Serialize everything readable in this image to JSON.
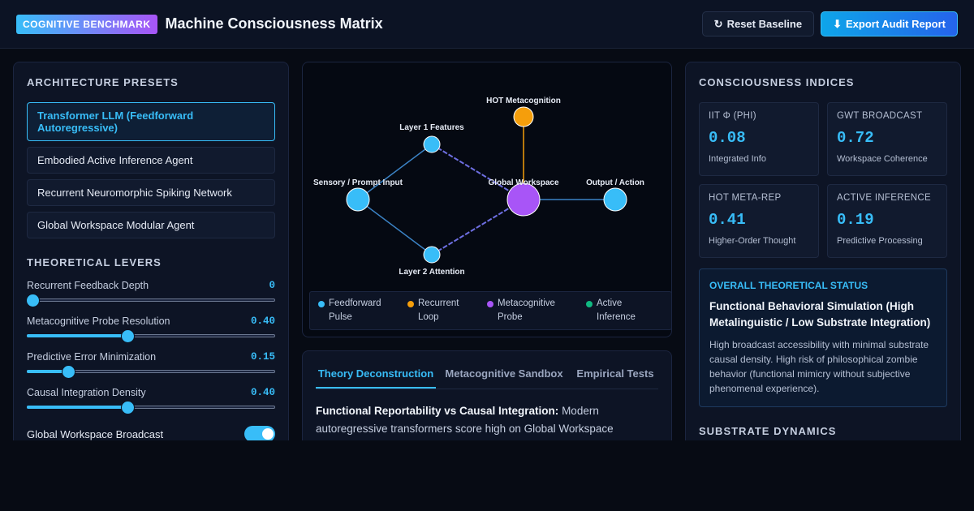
{
  "header": {
    "badge": "COGNITIVE BENCHMARK",
    "title": "Machine Consciousness Matrix",
    "reset_label": "Reset Baseline",
    "reset_icon": "refresh-icon",
    "export_label": "Export Audit Report",
    "export_icon": "download-icon"
  },
  "presets": {
    "title": "ARCHITECTURE PRESETS",
    "items": [
      {
        "label": "Transformer LLM (Feedforward Autoregressive)",
        "active": true
      },
      {
        "label": "Embodied Active Inference Agent",
        "active": false
      },
      {
        "label": "Recurrent Neuromorphic Spiking Network",
        "active": false
      },
      {
        "label": "Global Workspace Modular Agent",
        "active": false
      }
    ]
  },
  "levers": {
    "title": "THEORETICAL LEVERS",
    "items": [
      {
        "label": "Recurrent Feedback Depth",
        "value": "0",
        "level": 0
      },
      {
        "label": "Metacognitive Probe Resolution",
        "value": "0.40",
        "level": 0.4
      },
      {
        "label": "Predictive Error Minimization",
        "value": "0.15",
        "level": 0.15
      },
      {
        "label": "Causal Integration Density",
        "value": "0.40",
        "level": 0.4
      }
    ],
    "toggle_label": "Global Workspace Broadcast",
    "toggle_on": true
  },
  "graph": {
    "nodes": [
      {
        "label": "HOT Metacognition",
        "color": "#f59e0b"
      },
      {
        "label": "Layer 1 Features",
        "color": "#38bdf8"
      },
      {
        "label": "Sensory / Prompt Input",
        "color": "#38bdf8"
      },
      {
        "label": "Global Workspace",
        "color": "#a855f7"
      },
      {
        "label": "Output / Action",
        "color": "#38bdf8"
      },
      {
        "label": "Layer 2 Attention",
        "color": "#38bdf8"
      }
    ],
    "legend": [
      {
        "label": "Feedforward Pulse",
        "color": "#38bdf8"
      },
      {
        "label": "Recurrent Loop",
        "color": "#f59e0b"
      },
      {
        "label": "Metacognitive Probe",
        "color": "#a855f7"
      },
      {
        "label": "Active Inference",
        "color": "#10b981"
      }
    ]
  },
  "tabs": {
    "items": [
      {
        "label": "Theory Deconstruction",
        "active": true
      },
      {
        "label": "Metacognitive Sandbox",
        "active": false
      },
      {
        "label": "Empirical Tests",
        "active": false
      }
    ],
    "body_lead": "Functional Reportability vs Causal Integration:",
    "body_text": "Modern autoregressive transformers score high on Global Workspace"
  },
  "indices": {
    "title": "CONSCIOUSNESS INDICES",
    "items": [
      {
        "label": "IIT Φ (PHI)",
        "value": "0.08",
        "sub": "Integrated Info"
      },
      {
        "label": "GWT BROADCAST",
        "value": "0.72",
        "sub": "Workspace Coherence"
      },
      {
        "label": "HOT META-REP",
        "value": "0.41",
        "sub": "Higher-Order Thought"
      },
      {
        "label": "ACTIVE INFERENCE",
        "value": "0.19",
        "sub": "Predictive Processing"
      }
    ],
    "status_label": "OVERALL THEORETICAL STATUS",
    "status_title": "Functional Behavioral Simulation (High Metalinguistic / Low Substrate Integration)",
    "status_desc": "High broadcast accessibility with minimal substrate causal density. High risk of philosophical zombie behavior (functional mimicry without subjective phenomenal experience).",
    "substrate_title": "SUBSTRATE DYNAMICS"
  }
}
